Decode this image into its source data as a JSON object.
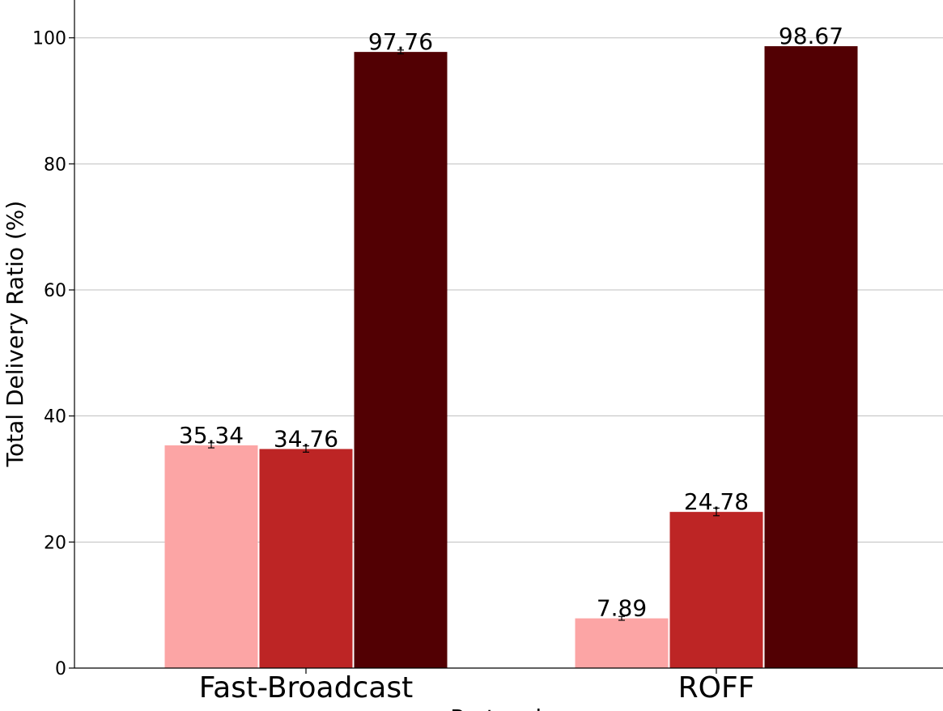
{
  "chart_data": {
    "type": "bar",
    "title": "",
    "xlabel": "Protocols",
    "ylabel": "Total Delivery Ratio (%)",
    "ylim": [
      0,
      106
    ],
    "yticks": [
      0,
      20,
      40,
      60,
      80,
      100
    ],
    "grid": "horizontal",
    "categories": [
      "Fast-Broadcast",
      "ROFF"
    ],
    "series": [
      {
        "color": "#fca5a5",
        "values": [
          35.34,
          7.89
        ],
        "errors": [
          0.4,
          0.3
        ]
      },
      {
        "color": "#bd2525",
        "values": [
          34.76,
          24.78
        ],
        "errors": [
          0.5,
          0.6
        ]
      },
      {
        "color": "#520003",
        "values": [
          97.76,
          98.67
        ],
        "errors": [
          0.3,
          0
        ]
      }
    ],
    "data_labels": [
      [
        "35.34",
        "7.89"
      ],
      [
        "34.76",
        "24.78"
      ],
      [
        "97.76",
        "98.67"
      ]
    ]
  }
}
